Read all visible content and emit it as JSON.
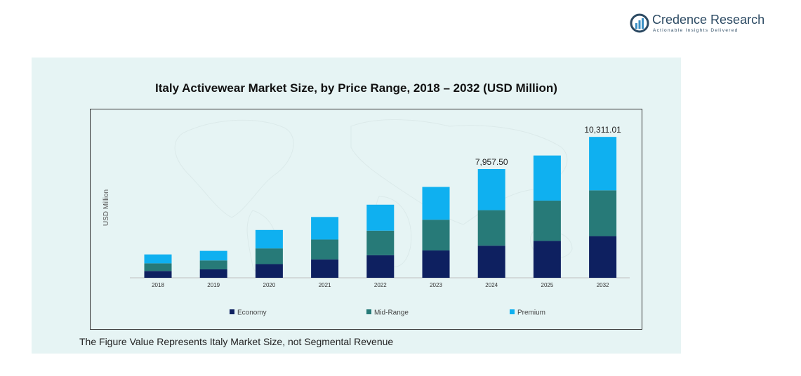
{
  "brand": {
    "name": "Credence Research",
    "tagline": "Actionable Insights Delivered"
  },
  "footnote": "The Figure Value Represents Italy Market Size, not Segmental Revenue",
  "colors": {
    "economy": "#0e2060",
    "mid_range": "#277a78",
    "premium": "#0fb0f0",
    "panel": "#e6f4f4"
  },
  "chart_data": {
    "type": "bar",
    "stacked": true,
    "title": "Italy Activewear Market Size, by Price Range, 2018 – 2032 (USD Million)",
    "xlabel": "",
    "ylabel": "USD Million",
    "categories": [
      "2018",
      "2019",
      "2020",
      "2021",
      "2022",
      "2023",
      "2024",
      "2025",
      "2032"
    ],
    "series": [
      {
        "name": "Economy",
        "values": [
          500,
          620,
          1000,
          1350,
          1650,
          2000,
          2350,
          2700,
          3050
        ]
      },
      {
        "name": "Mid-Range",
        "values": [
          560,
          650,
          1150,
          1450,
          1800,
          2250,
          2600,
          2950,
          3350
        ]
      },
      {
        "name": "Premium",
        "values": [
          650,
          700,
          1350,
          1650,
          1900,
          2400,
          3007.5,
          3300,
          3911.01
        ]
      }
    ],
    "totals_labels": [
      {
        "category": "2024",
        "label": "7,957.50"
      },
      {
        "category": "2032",
        "label": "10,311.01"
      }
    ],
    "ylim": [
      0,
      11500
    ],
    "grid": false,
    "legend_position": "bottom"
  }
}
